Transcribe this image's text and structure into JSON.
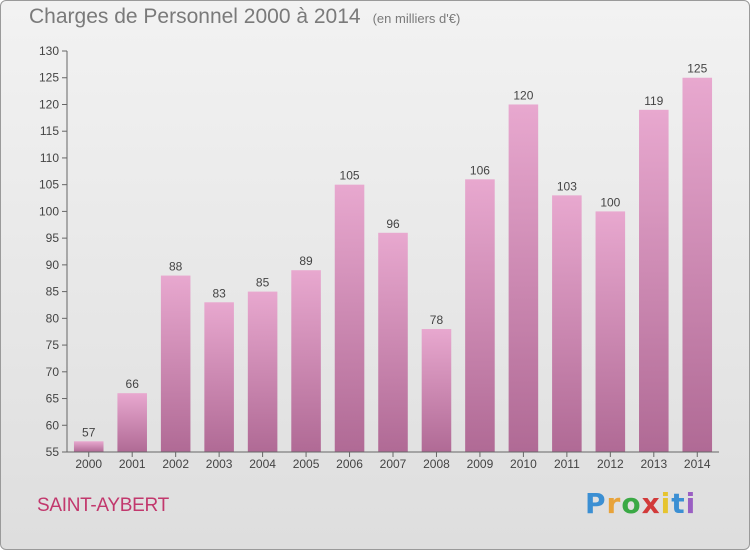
{
  "header": {
    "title": "Charges de Personnel 2000 à 2014",
    "subtitle": "(en milliers d'€)"
  },
  "footer": {
    "commune": "SAINT-AYBERT",
    "brand": "Proxiti"
  },
  "colors": {
    "bar_top": "#e8a8cf",
    "bar_bottom": "#b06a95",
    "commune_text": "#c2386d"
  },
  "chart_data": {
    "type": "bar",
    "title": "Charges de Personnel 2000 à 2014",
    "subtitle": "(en milliers d'€)",
    "xlabel": "",
    "ylabel": "",
    "categories": [
      "2000",
      "2001",
      "2002",
      "2003",
      "2004",
      "2005",
      "2006",
      "2007",
      "2008",
      "2009",
      "2010",
      "2011",
      "2012",
      "2013",
      "2014"
    ],
    "values": [
      57,
      66,
      88,
      83,
      85,
      89,
      105,
      96,
      78,
      106,
      120,
      103,
      100,
      119,
      125
    ],
    "ylim": [
      55,
      130
    ],
    "yticks": [
      55,
      60,
      65,
      70,
      75,
      80,
      85,
      90,
      95,
      100,
      105,
      110,
      115,
      120,
      125,
      130
    ],
    "grid": false,
    "legend": "none"
  }
}
